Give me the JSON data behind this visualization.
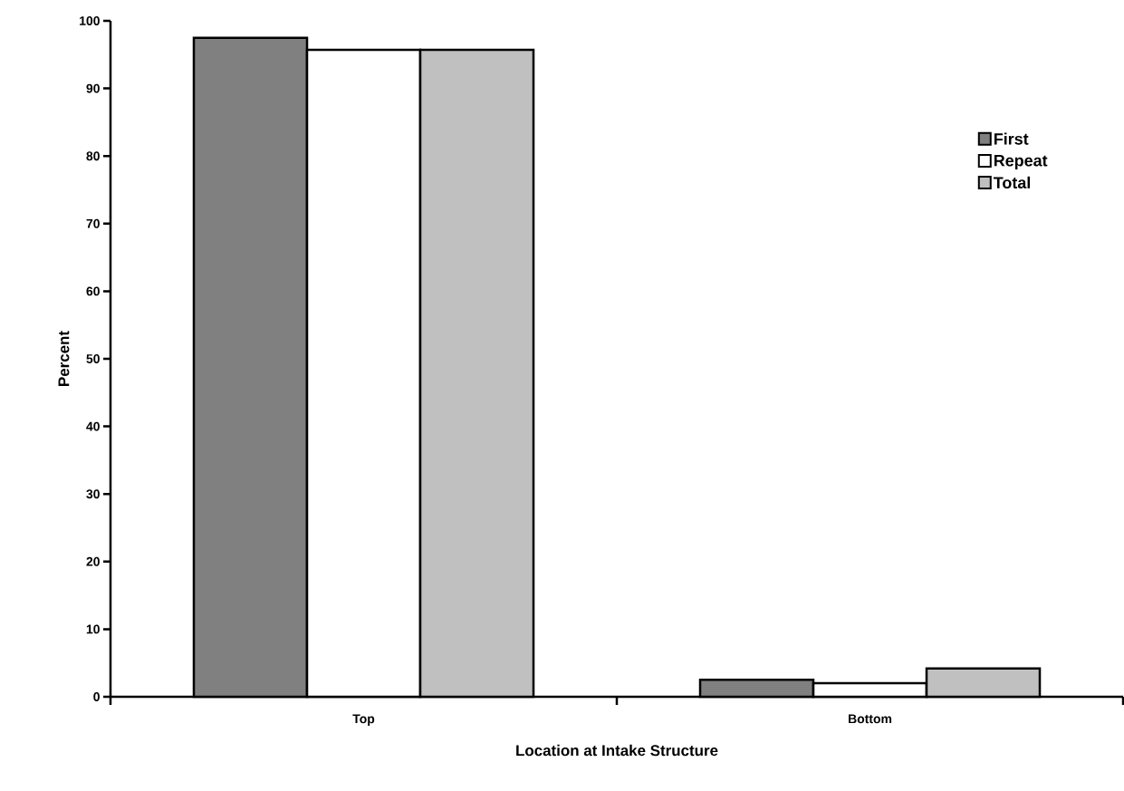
{
  "chart_data": {
    "type": "bar",
    "xlabel": "Location at Intake Structure",
    "ylabel": "Percent",
    "categories": [
      "Top",
      "Bottom"
    ],
    "series": [
      {
        "name": "First",
        "color": "#808080",
        "values": [
          97.5,
          2.5
        ]
      },
      {
        "name": "Repeat",
        "color": "#ffffff",
        "values": [
          95.7,
          2.0
        ]
      },
      {
        "name": "Total",
        "color": "#c0c0c0",
        "values": [
          95.7,
          4.2
        ]
      }
    ],
    "ylim": [
      0,
      100
    ],
    "yticks": [
      0,
      10,
      20,
      30,
      40,
      50,
      60,
      70,
      80,
      90,
      100
    ],
    "legend": "top right"
  }
}
